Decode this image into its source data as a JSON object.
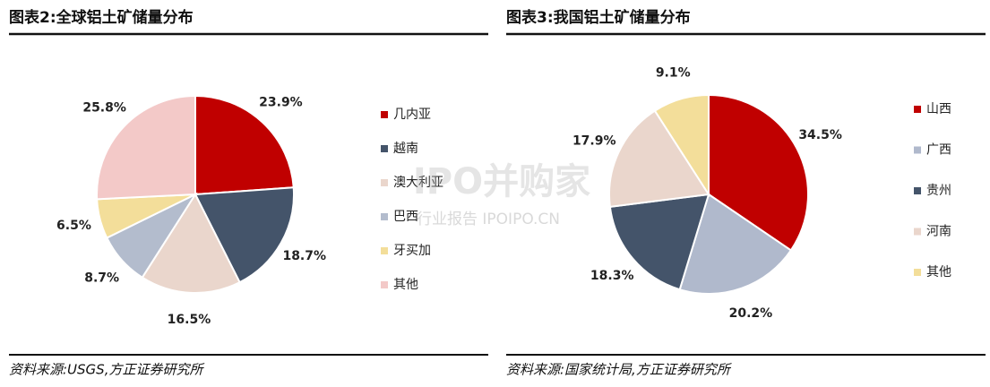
{
  "chart_data": [
    {
      "type": "pie",
      "title": "图表2:全球铝土矿储量分布",
      "categories": [
        "几内亚",
        "越南",
        "澳大利亚",
        "巴西",
        "牙买加",
        "其他"
      ],
      "values": [
        23.9,
        18.7,
        16.5,
        8.7,
        6.5,
        25.8
      ],
      "value_labels": [
        "23.9%",
        "18.7%",
        "16.5%",
        "8.7%",
        "6.5%",
        "25.8%"
      ],
      "colors": [
        "#c00000",
        "#44546a",
        "#ead6cc",
        "#b3bccd",
        "#f3de9a",
        "#f3c9c8"
      ],
      "source": "资料来源:USGS,方正证券研究所"
    },
    {
      "type": "pie",
      "title": "图表3:我国铝土矿储量分布",
      "categories": [
        "山西",
        "广西",
        "贵州",
        "河南",
        "其他"
      ],
      "values": [
        34.5,
        20.2,
        18.3,
        17.9,
        9.1
      ],
      "value_labels": [
        "34.5%",
        "20.2%",
        "18.3%",
        "17.9%",
        "9.1%"
      ],
      "colors": [
        "#c00000",
        "#b0b9cc",
        "#44546a",
        "#ead6cc",
        "#f3de9a"
      ],
      "source": "资料来源:国家统计局,方正证券研究所"
    }
  ],
  "watermark": [
    "IPO并购家",
    "行业报告 IPOIPO.CN"
  ]
}
